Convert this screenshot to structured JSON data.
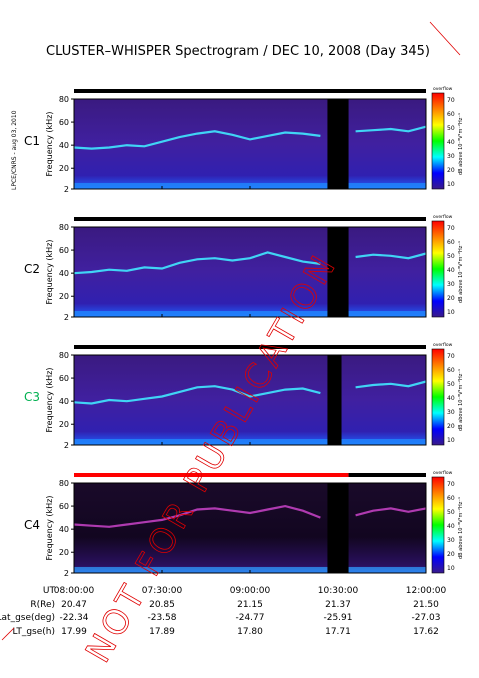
{
  "header": {
    "title": "CLUSTER–WHISPER Spectrogram / DEC 10, 2008 (Day 345)",
    "credit": "LPCE/CNRS - aug 03, 2010"
  },
  "watermark": {
    "text": "NOT FOR PUBLICATION",
    "color": "#e00000"
  },
  "footer": {
    "row_labels": [
      "UT",
      "R(Re)",
      "Lat_gse(deg)",
      "LT_gse(h)"
    ],
    "columns": [
      [
        "08:00:00",
        "20.47",
        "-22.34",
        "17.99"
      ],
      [
        "07:30:00",
        "20.85",
        "-23.58",
        "17.89"
      ],
      [
        "09:00:00",
        "21.15",
        "-24.77",
        "17.80"
      ],
      [
        "10:30:00",
        "21.37",
        "-25.91",
        "17.71"
      ],
      [
        "12:00:00",
        "21.50",
        "-27.03",
        "17.62"
      ]
    ]
  },
  "colorbar": {
    "label": "dB above 10⁻⁸V²m⁻²Hz⁻¹",
    "top_tag": "overflow",
    "ticks": [
      "70",
      "60",
      "50",
      "40",
      "30",
      "20",
      "10"
    ],
    "colors": [
      "#ff0000",
      "#ff8000",
      "#ffff00",
      "#00ff00",
      "#00ffff",
      "#0000ff",
      "#3a1a8a"
    ]
  },
  "chart_data": [
    {
      "type": "heatmap",
      "panel": "C1",
      "label_color": "#000000",
      "ylabel": "Frequency (kHz)",
      "y_ticks": [
        "80",
        "60",
        "40",
        "20",
        "2"
      ],
      "ylim": [
        2,
        80
      ],
      "x_ticks": [
        "08:00:00",
        "07:30:00",
        "09:00:00",
        "10:30:00",
        "12:00:00"
      ],
      "status_bar": [
        {
          "from": 0,
          "to": 1,
          "color": "#000000"
        }
      ],
      "gap": [
        0.72,
        0.78
      ],
      "line_color": "#40e8ff",
      "trace": {
        "t": [
          0,
          0.05,
          0.1,
          0.15,
          0.2,
          0.25,
          0.3,
          0.35,
          0.4,
          0.45,
          0.5,
          0.55,
          0.6,
          0.65,
          0.7,
          0.8,
          0.85,
          0.9,
          0.95,
          1.0
        ],
        "khz": [
          38,
          37,
          38,
          40,
          39,
          43,
          47,
          50,
          52,
          49,
          45,
          48,
          51,
          50,
          48,
          52,
          53,
          54,
          52,
          56
        ]
      }
    },
    {
      "type": "heatmap",
      "panel": "C2",
      "label_color": "#000000",
      "ylabel": "Frequency (kHz)",
      "y_ticks": [
        "80",
        "60",
        "40",
        "20",
        "2"
      ],
      "ylim": [
        2,
        80
      ],
      "x_ticks": [
        "08:00:00",
        "07:30:00",
        "09:00:00",
        "10:30:00",
        "12:00:00"
      ],
      "status_bar": [
        {
          "from": 0,
          "to": 1,
          "color": "#000000"
        }
      ],
      "gap": [
        0.72,
        0.78
      ],
      "line_color": "#40e8ff",
      "trace": {
        "t": [
          0,
          0.05,
          0.1,
          0.15,
          0.2,
          0.25,
          0.3,
          0.35,
          0.4,
          0.45,
          0.5,
          0.55,
          0.6,
          0.65,
          0.7,
          0.8,
          0.85,
          0.9,
          0.95,
          1.0
        ],
        "khz": [
          40,
          41,
          43,
          42,
          45,
          44,
          49,
          52,
          53,
          51,
          53,
          58,
          54,
          50,
          48,
          54,
          56,
          55,
          53,
          57
        ]
      }
    },
    {
      "type": "heatmap",
      "panel": "C3",
      "label_color": "#00b050",
      "ylabel": "Frequency (kHz)",
      "y_ticks": [
        "80",
        "60",
        "40",
        "20",
        "2"
      ],
      "ylim": [
        2,
        80
      ],
      "x_ticks": [
        "08:00:00",
        "07:30:00",
        "09:00:00",
        "10:30:00",
        "12:00:00"
      ],
      "status_bar": [
        {
          "from": 0,
          "to": 1,
          "color": "#000000"
        }
      ],
      "gap": [
        0.72,
        0.76
      ],
      "line_color": "#40e8ff",
      "trace": {
        "t": [
          0,
          0.05,
          0.1,
          0.15,
          0.2,
          0.25,
          0.3,
          0.35,
          0.4,
          0.45,
          0.5,
          0.55,
          0.6,
          0.65,
          0.7,
          0.8,
          0.85,
          0.9,
          0.95,
          1.0
        ],
        "khz": [
          39,
          38,
          41,
          40,
          42,
          44,
          48,
          52,
          53,
          50,
          44,
          47,
          50,
          51,
          47,
          52,
          54,
          55,
          53,
          57
        ]
      }
    },
    {
      "type": "heatmap",
      "panel": "C4",
      "label_color": "#000000",
      "ylabel": "Frequency (kHz)",
      "y_ticks": [
        "80",
        "60",
        "40",
        "20",
        "2"
      ],
      "ylim": [
        2,
        80
      ],
      "x_ticks": [
        "08:00:00",
        "07:30:00",
        "09:00:00",
        "10:30:00",
        "12:00:00"
      ],
      "status_bar": [
        {
          "from": 0,
          "to": 0.78,
          "color": "#ff0000"
        },
        {
          "from": 0.78,
          "to": 1,
          "color": "#000000"
        }
      ],
      "gap": [
        0.72,
        0.78
      ],
      "line_color": "#c040c0",
      "trace": {
        "t": [
          0,
          0.05,
          0.1,
          0.15,
          0.2,
          0.25,
          0.3,
          0.35,
          0.4,
          0.45,
          0.5,
          0.55,
          0.6,
          0.65,
          0.7,
          0.8,
          0.85,
          0.9,
          0.95,
          1.0
        ],
        "khz": [
          44,
          43,
          42,
          44,
          46,
          48,
          52,
          57,
          58,
          56,
          54,
          57,
          60,
          56,
          50,
          52,
          56,
          58,
          55,
          58
        ]
      }
    }
  ]
}
